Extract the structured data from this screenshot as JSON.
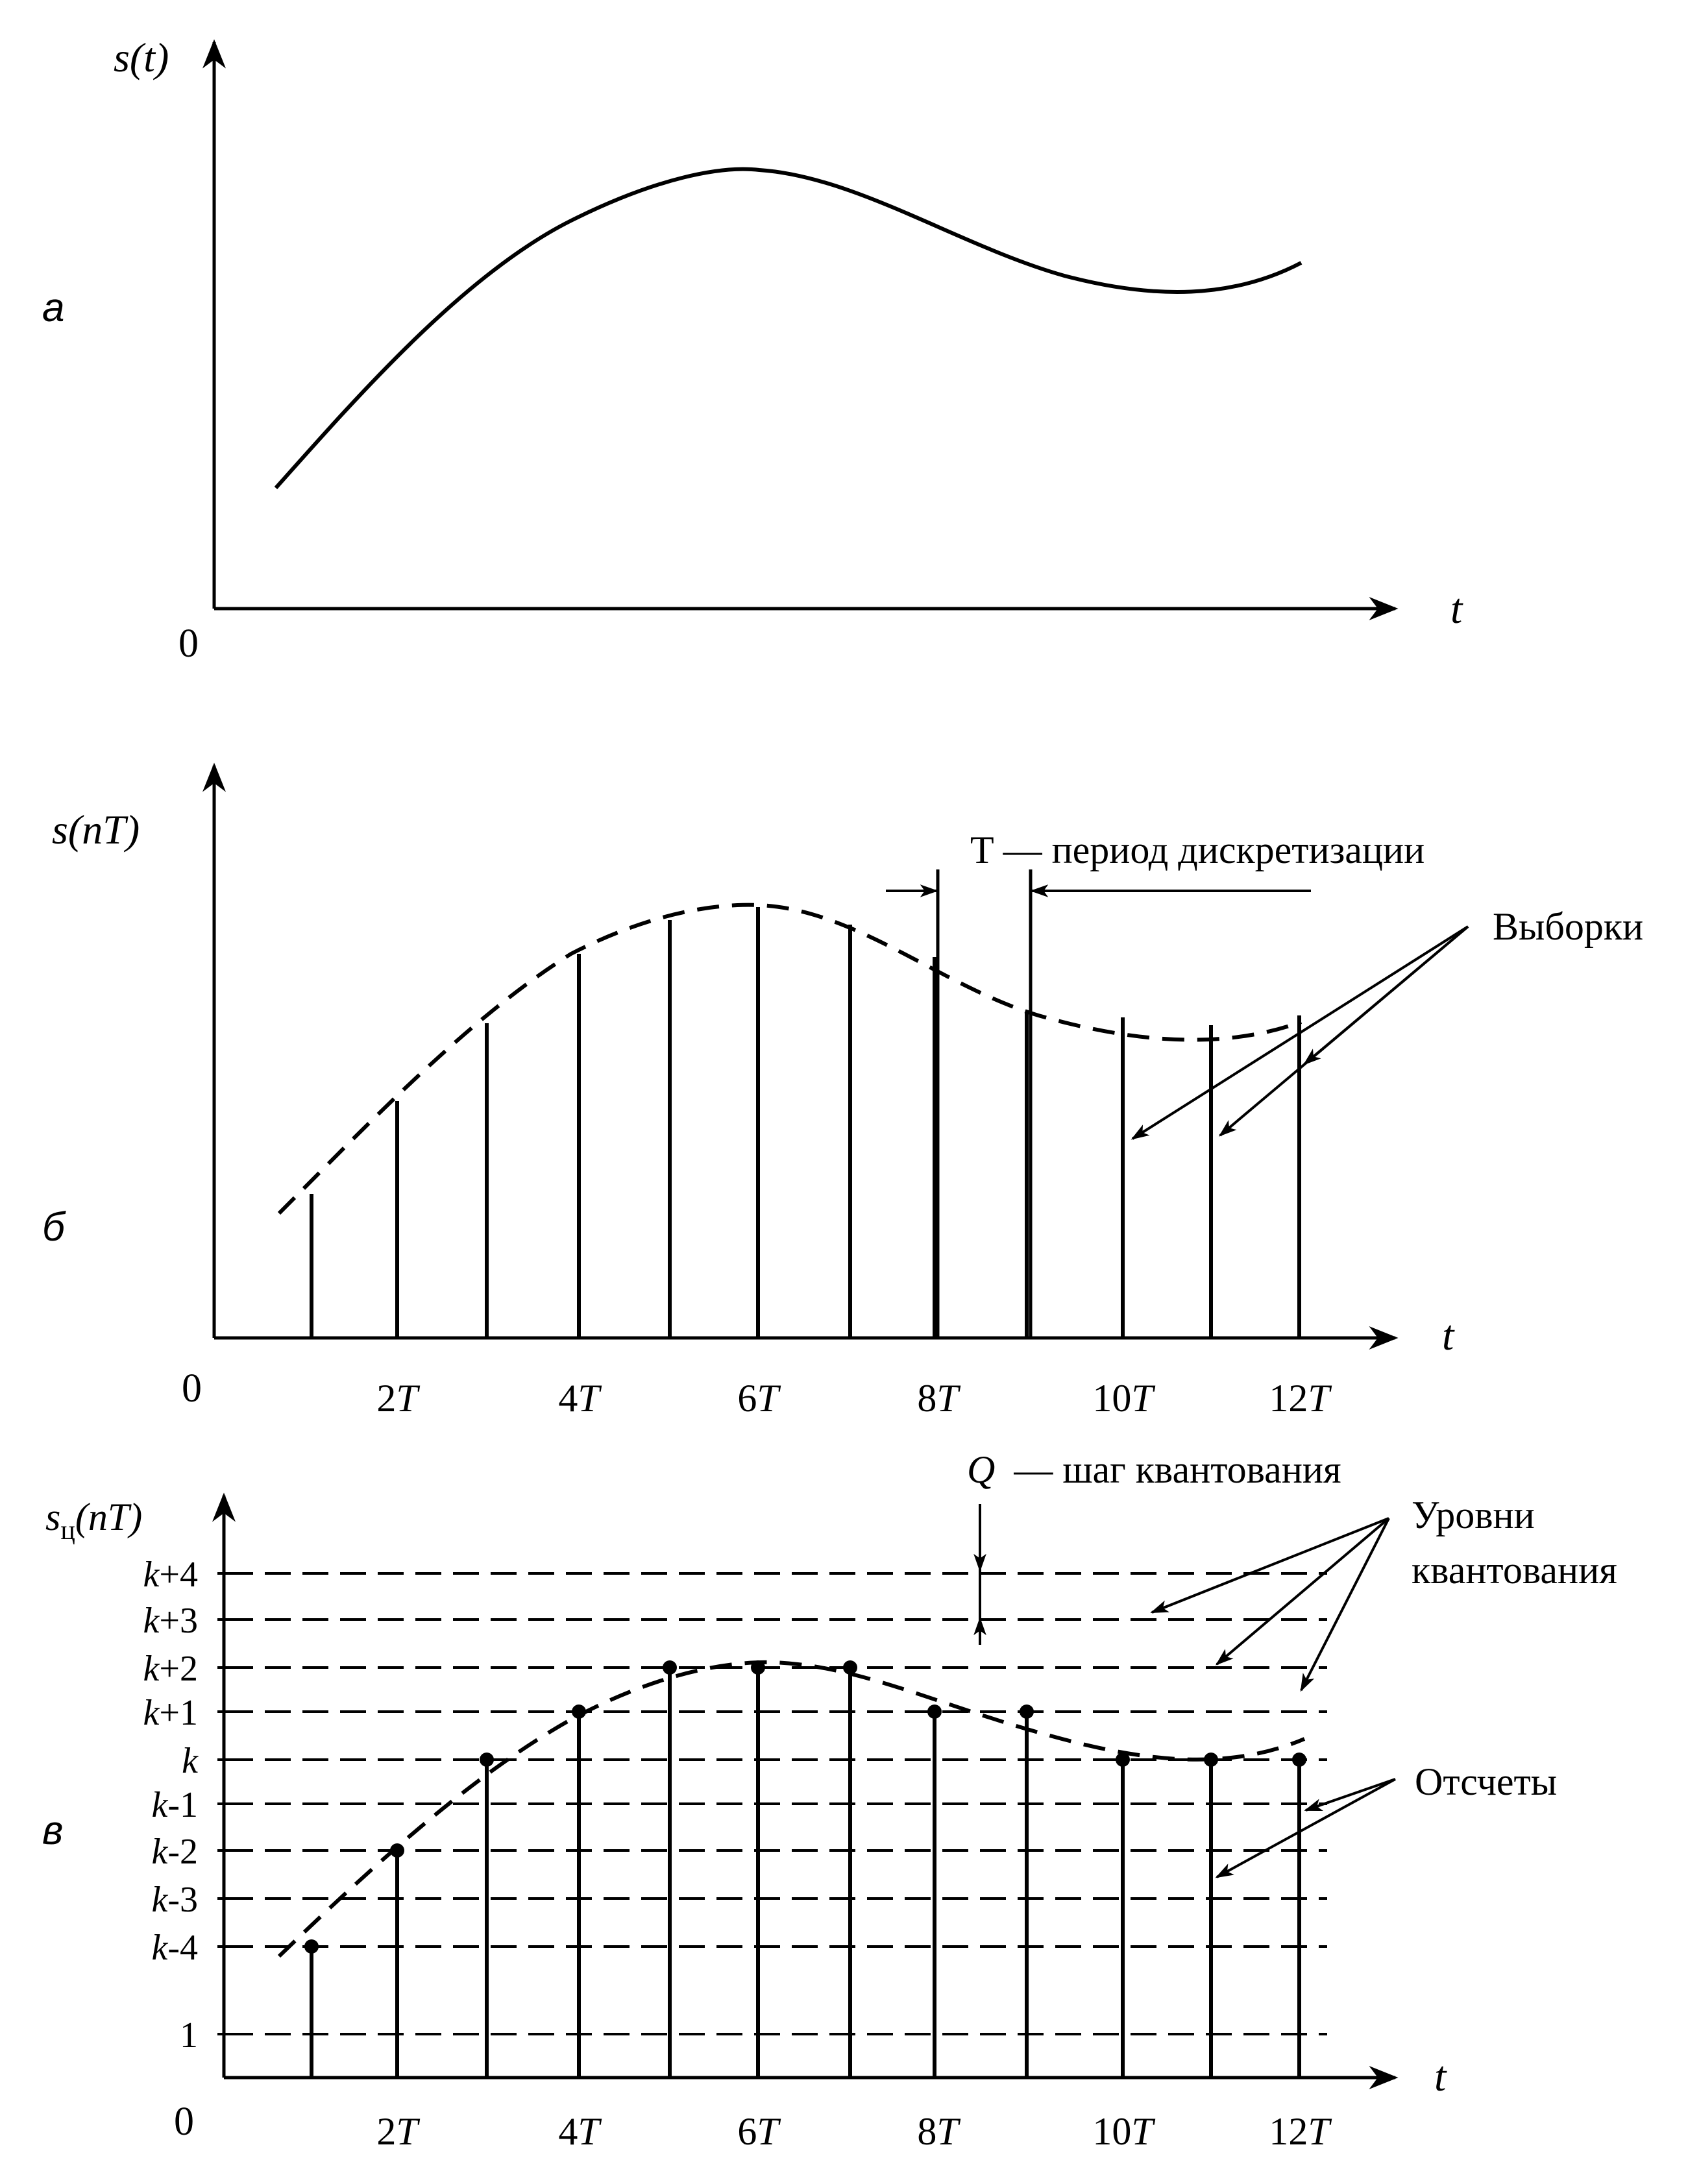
{
  "panels": {
    "a": {
      "letter": "а",
      "y_label": "s(t)",
      "x_label": "t",
      "origin": "0"
    },
    "b": {
      "letter": "б",
      "y_label": "s(nT)",
      "x_label": "t",
      "origin": "0",
      "period_note": "T — период дискретизации",
      "samples_note": "Выборки",
      "ticks": [
        {
          "n": 2,
          "t": "T"
        },
        {
          "n": 4,
          "t": "T"
        },
        {
          "n": 6,
          "t": "T"
        },
        {
          "n": 8,
          "t": "T"
        },
        {
          "n": 10,
          "t": "T"
        },
        {
          "n": 12,
          "t": "T"
        }
      ]
    },
    "v": {
      "letter": "в",
      "y_label_main": "s",
      "y_label_sub": "ц",
      "y_label_tail": "(nT)",
      "x_label": "t",
      "origin": "0",
      "step_symbol": "Q",
      "step_note": "— шаг квантования",
      "levels_note_line1": "Уровни",
      "levels_note_line2": "квантования",
      "counts_note": "Отсчеты",
      "levels": [
        {
          "k": "k",
          "s": "+4"
        },
        {
          "k": "k",
          "s": "+3"
        },
        {
          "k": "k",
          "s": "+2"
        },
        {
          "k": "k",
          "s": "+1"
        },
        {
          "k": "k",
          "s": ""
        },
        {
          "k": "k",
          "s": "-1"
        },
        {
          "k": "k",
          "s": "-2"
        },
        {
          "k": "k",
          "s": "-3"
        },
        {
          "k": "k",
          "s": "-4"
        },
        {
          "k": "",
          "s": "1"
        }
      ],
      "ticks": [
        {
          "n": 2,
          "t": "T"
        },
        {
          "n": 4,
          "t": "T"
        },
        {
          "n": 6,
          "t": "T"
        },
        {
          "n": 8,
          "t": "T"
        },
        {
          "n": 10,
          "t": "T"
        },
        {
          "n": 12,
          "t": "T"
        }
      ]
    }
  }
}
